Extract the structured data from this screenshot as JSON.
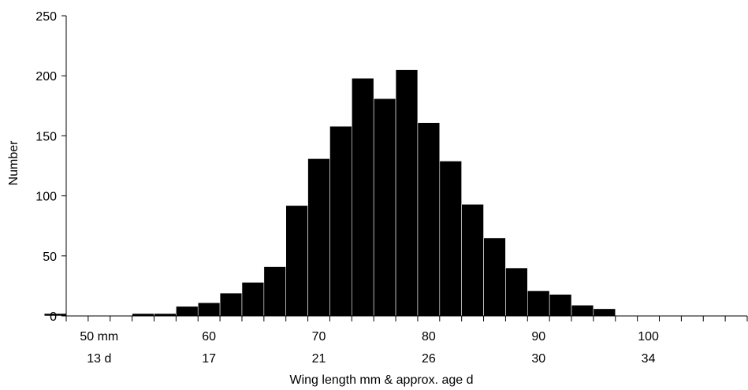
{
  "chart_data": {
    "type": "bar",
    "xlabel": "Wing length mm & approx. age d",
    "ylabel": "Number",
    "ylim": [
      0,
      250
    ],
    "yticks": [
      0,
      50,
      100,
      150,
      200,
      250
    ],
    "bin_width_mm": 2,
    "bins_start_mm": [
      46,
      48,
      50,
      52,
      54,
      56,
      58,
      60,
      62,
      64,
      66,
      68,
      70,
      72,
      74,
      76,
      78,
      80,
      82,
      84,
      86,
      88,
      90,
      92,
      94,
      96,
      98,
      100,
      102,
      104,
      106,
      108
    ],
    "values": [
      2,
      0,
      0,
      0,
      2,
      2,
      8,
      11,
      19,
      28,
      41,
      92,
      131,
      158,
      198,
      181,
      205,
      161,
      129,
      93,
      65,
      40,
      21,
      18,
      9,
      6,
      0,
      0,
      0,
      0,
      0,
      0
    ],
    "x_range_mm": [
      47,
      109
    ],
    "x_label_row1": [
      {
        "at_mm": 50,
        "text": "50 mm"
      },
      {
        "at_mm": 60,
        "text": "60"
      },
      {
        "at_mm": 70,
        "text": "70"
      },
      {
        "at_mm": 80,
        "text": "80"
      },
      {
        "at_mm": 90,
        "text": "90"
      },
      {
        "at_mm": 100,
        "text": "100"
      }
    ],
    "x_label_row2": [
      {
        "at_mm": 50,
        "text": "13 d"
      },
      {
        "at_mm": 60,
        "text": "17"
      },
      {
        "at_mm": 70,
        "text": "21"
      },
      {
        "at_mm": 80,
        "text": "26"
      },
      {
        "at_mm": 90,
        "text": "30"
      },
      {
        "at_mm": 100,
        "text": "34"
      }
    ],
    "bar_color": "#000000",
    "grid": false
  }
}
